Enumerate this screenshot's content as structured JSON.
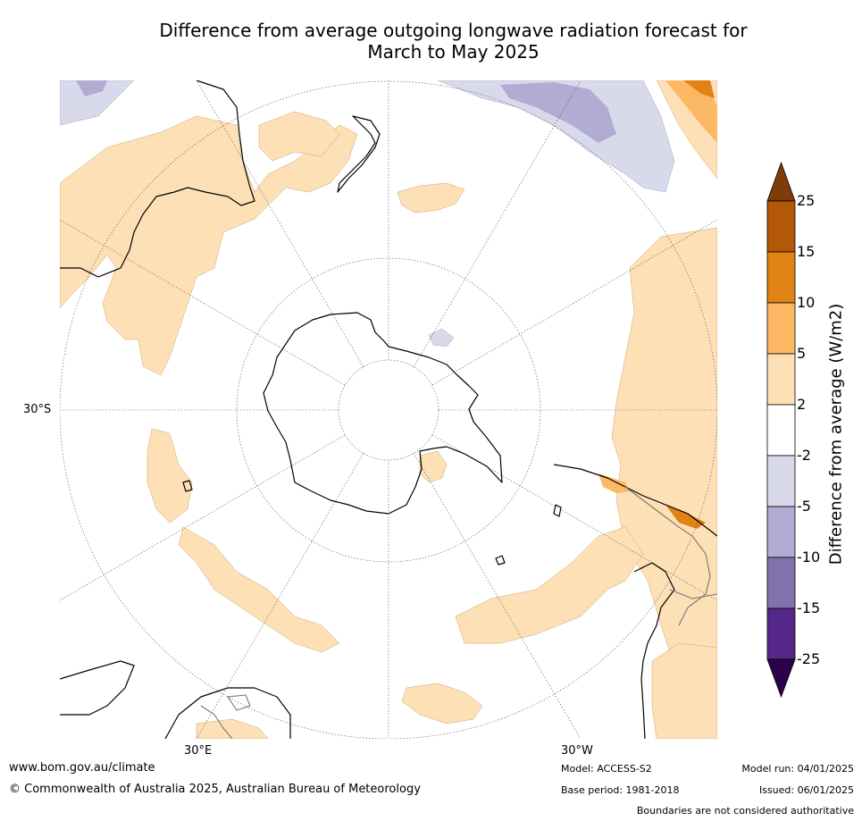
{
  "title_line1": "Difference from average outgoing longwave radiation forecast for",
  "title_line2": "March to May 2025",
  "map": {
    "projection": "south-polar-stereographic",
    "lat_label": "30°S",
    "lon_labels": {
      "east": "30°E",
      "west": "30°W"
    }
  },
  "colorbar": {
    "title": "Difference from average (W/m2)",
    "levels": [
      "25",
      "15",
      "10",
      "5",
      "2",
      "-2",
      "-5",
      "-10",
      "-15",
      "-25"
    ],
    "colors": [
      "#7f3b08",
      "#b35806",
      "#e08214",
      "#fdb863",
      "#fee0b6",
      "#ffffff",
      "#d8daeb",
      "#b2abd2",
      "#8073ac",
      "#542788",
      "#2d004b"
    ]
  },
  "footer": {
    "website": "www.bom.gov.au/climate",
    "copyright": "© Commonwealth of Australia 2025, Australian Bureau of Meteorology",
    "model": "Model: ACCESS-S2",
    "base_period": "Base period: 1981-2018",
    "model_run": "Model run: 04/01/2025",
    "issued": "Issued: 06/01/2025",
    "disclaimer": "Boundaries are not considered authoritative"
  }
}
